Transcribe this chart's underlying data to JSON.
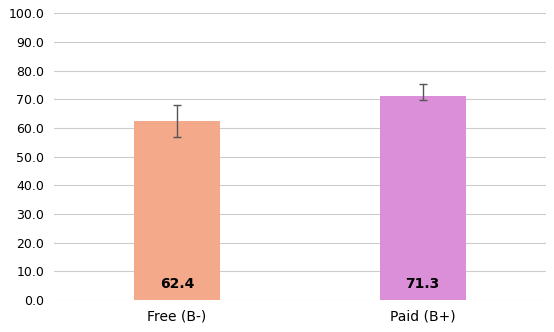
{
  "categories": [
    "Free (B-)",
    "Paid (B+)"
  ],
  "values": [
    62.4,
    71.3
  ],
  "errors_up": [
    5.5,
    4.0
  ],
  "errors_down": [
    5.5,
    1.5
  ],
  "bar_colors": [
    "#F4A98A",
    "#DA8FD8"
  ],
  "value_labels": [
    "62.4",
    "71.3"
  ],
  "ylim": [
    0,
    100
  ],
  "yticks": [
    0.0,
    10.0,
    20.0,
    30.0,
    40.0,
    50.0,
    60.0,
    70.0,
    80.0,
    90.0,
    100.0
  ],
  "background_color": "#ffffff",
  "grid_color": "#cccccc",
  "label_fontsize": 10,
  "tick_fontsize": 9,
  "bar_width": 0.35,
  "error_color": "#555555",
  "value_label_color": "#000000",
  "value_label_fontsize": 10,
  "value_label_fontweight": "bold",
  "x_positions": [
    0.5,
    1.5
  ],
  "xlim": [
    0,
    2
  ]
}
